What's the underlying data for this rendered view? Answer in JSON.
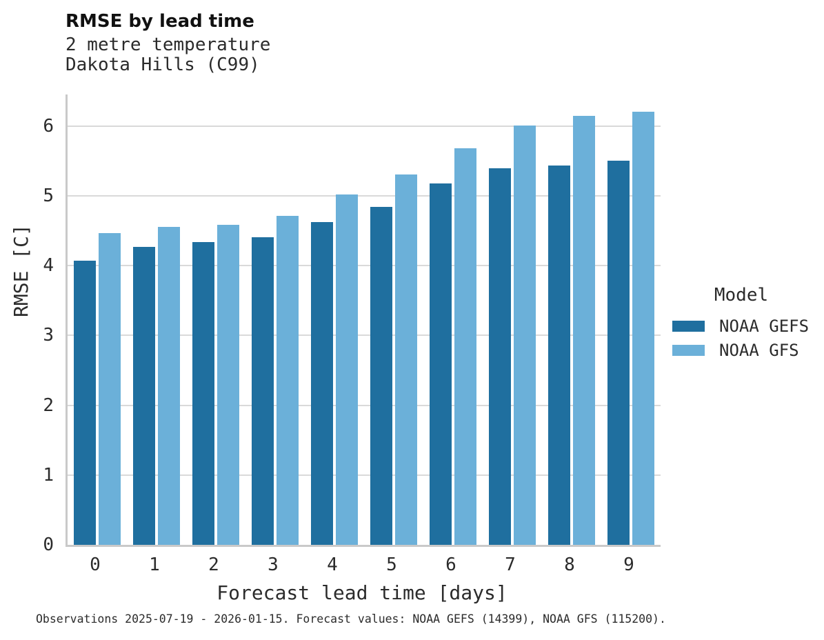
{
  "header": {
    "title": "RMSE by lead time",
    "subtitle_line1": "2 metre temperature",
    "subtitle_line2": "Dakota Hills (C99)"
  },
  "chart_data": {
    "type": "bar",
    "title": "RMSE by lead time",
    "subtitle": [
      "2 metre temperature",
      "Dakota Hills (C99)"
    ],
    "categories": [
      "0",
      "1",
      "2",
      "3",
      "4",
      "5",
      "6",
      "7",
      "8",
      "9"
    ],
    "series": [
      {
        "name": "NOAA GEFS",
        "color": "#1f6f9f",
        "values": [
          4.07,
          4.27,
          4.34,
          4.41,
          4.62,
          4.84,
          5.18,
          5.39,
          5.43,
          5.5
        ]
      },
      {
        "name": "NOAA GFS",
        "color": "#6bb0d9",
        "values": [
          4.46,
          4.55,
          4.58,
          4.71,
          5.02,
          5.3,
          5.68,
          6.01,
          6.14,
          6.2
        ]
      }
    ],
    "xlabel": "Forecast lead time [days]",
    "ylabel": "RMSE [C]",
    "ylim": [
      0,
      6.45
    ],
    "yticks": [
      0,
      1,
      2,
      3,
      4,
      5,
      6
    ],
    "grid": "horizontal",
    "legend_position": "right"
  },
  "legend": {
    "title": "Model"
  },
  "footer": {
    "caption": "Observations 2025-07-19 - 2026-01-15. Forecast values: NOAA GEFS (14399), NOAA GFS (115200)."
  },
  "colors": {
    "gefs_bar": "#1f6f9f",
    "gfs_bar": "#6bb0d9",
    "gridline": "#d9d9d9",
    "axis_line": "#c9c9c9",
    "text": "#2b2b2b"
  }
}
